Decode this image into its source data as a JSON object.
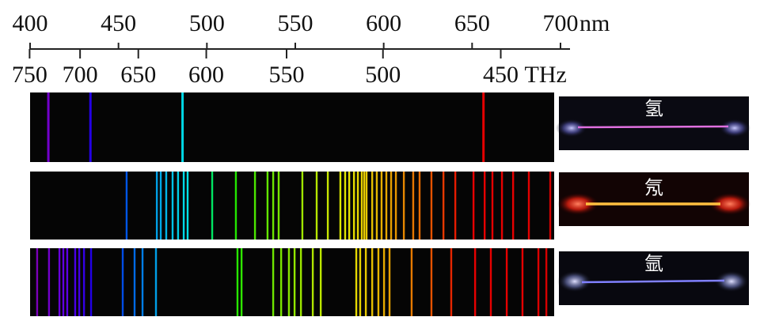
{
  "axis": {
    "nm_ticks": [
      400,
      450,
      500,
      550,
      600,
      650,
      700
    ],
    "nm_unit": "nm",
    "thz_ticks": [
      750,
      700,
      650,
      600,
      550,
      500,
      450
    ],
    "thz_unit": "THz"
  },
  "spectra": [
    {
      "label": "氢",
      "lines": [
        410.2,
        434.0,
        486.1,
        656.3
      ]
    },
    {
      "label": "氖",
      "lines": [
        454.6,
        471.7,
        473.9,
        477.0,
        480.6,
        483.7,
        486.9,
        489.1,
        503.0,
        516.4,
        527.2,
        534.3,
        537.5,
        540.6,
        554.0,
        562.1,
        568.4,
        575.5,
        578.2,
        580.5,
        583.2,
        585.4,
        587.6,
        589.0,
        590.3,
        593.5,
        596.1,
        598.8,
        601.5,
        604.2,
        606.9,
        611.4,
        616.7,
        620.3,
        627.0,
        633.8,
        640.5,
        650.8,
        657.1,
        661.5,
        666.9,
        673.2,
        682.1,
        694.2
      ]
    },
    {
      "label": "氩",
      "lines": [
        404.0,
        410.7,
        416.6,
        418.8,
        421.0,
        425.5,
        427.8,
        430.5,
        434.5,
        452.4,
        459.1,
        463.6,
        471.2,
        517.3,
        519.6,
        537.5,
        542.0,
        546.4,
        549.6,
        553.2,
        559.9,
        564.4,
        584.5,
        586.7,
        589.9,
        593.5,
        597.0,
        600.2,
        603.3,
        615.8,
        627.0,
        638.2,
        651.7,
        660.6,
        669.6,
        678.5,
        687.5,
        692.0
      ]
    }
  ]
}
